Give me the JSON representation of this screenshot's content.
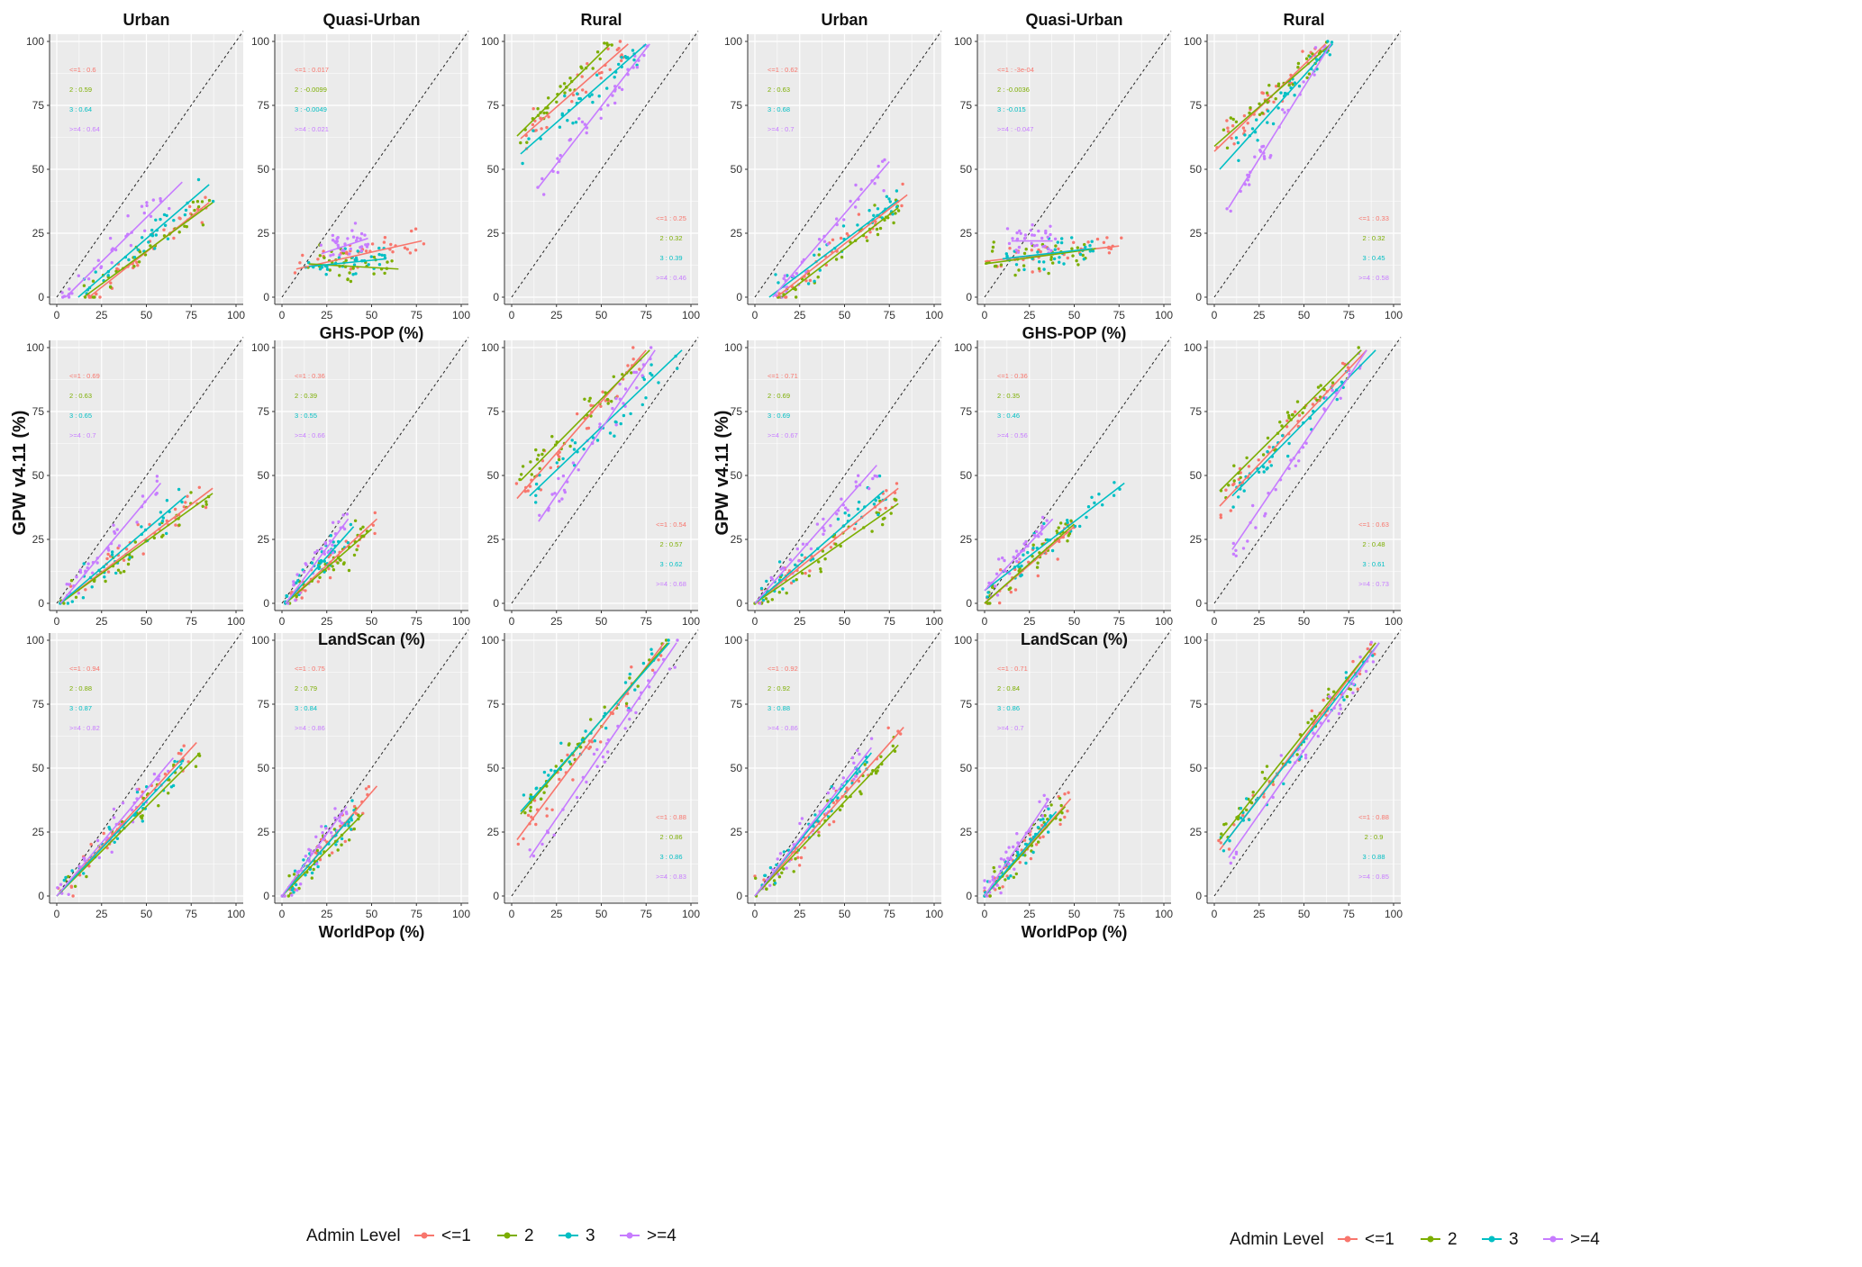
{
  "figure": {
    "colors": {
      "le1": "#F8766D",
      "l2": "#7CAE00",
      "l3": "#00BFC4",
      "ge4": "#C77CFF",
      "panel_bg": "#EBEBEB",
      "grid": "#ffffff"
    },
    "column_titles": [
      "Urban",
      "Quasi-Urban",
      "Rural",
      "Urban",
      "Quasi-Urban",
      "Rural"
    ],
    "ylabel": "GPW v4.11 (%)",
    "row_xlabels": [
      "GHS-POP (%)",
      "LandScan (%)",
      "WorldPop (%)"
    ],
    "ticks": [
      "0",
      "25",
      "50",
      "75",
      "100"
    ],
    "legend": {
      "title": "Admin Level",
      "entries": [
        "<=1",
        "2",
        "3",
        ">=4"
      ]
    }
  },
  "chart_data": [
    {
      "type": "scatter",
      "group": "left",
      "row": "GHS-POP",
      "column": "Urban",
      "xlim": [
        0,
        100
      ],
      "ylim": [
        0,
        100
      ],
      "annotation_position": "top-left",
      "r_labels": [
        "<=1 : 0.6",
        "2 : 0.59",
        "3 : 0.64",
        ">=4 : 0.64"
      ],
      "fits": [
        {
          "level": "<=1",
          "x": [
            18,
            85
          ],
          "y": [
            0,
            37
          ]
        },
        {
          "level": "2",
          "x": [
            15,
            87
          ],
          "y": [
            0,
            37
          ]
        },
        {
          "level": "3",
          "x": [
            12,
            85
          ],
          "y": [
            0,
            44
          ]
        },
        {
          "level": ">=4",
          "x": [
            5,
            70
          ],
          "y": [
            0,
            45
          ]
        }
      ]
    },
    {
      "type": "scatter",
      "group": "left",
      "row": "GHS-POP",
      "column": "Quasi-Urban",
      "xlim": [
        0,
        100
      ],
      "ylim": [
        0,
        100
      ],
      "annotation_position": "top-left",
      "r_labels": [
        "<=1 : 0.017",
        "2 : -0.0099",
        "3 : -0.0049",
        ">=4 : 0.021"
      ],
      "fits": [
        {
          "level": "<=1",
          "x": [
            8,
            78
          ],
          "y": [
            11,
            22
          ]
        },
        {
          "level": "2",
          "x": [
            15,
            65
          ],
          "y": [
            13,
            11
          ]
        },
        {
          "level": "3",
          "x": [
            15,
            58
          ],
          "y": [
            12,
            15
          ]
        },
        {
          "level": ">=4",
          "x": [
            22,
            48
          ],
          "y": [
            17,
            23
          ]
        }
      ]
    },
    {
      "type": "scatter",
      "group": "left",
      "row": "GHS-POP",
      "column": "Rural",
      "xlim": [
        0,
        100
      ],
      "ylim": [
        0,
        100
      ],
      "annotation_position": "bottom-right",
      "r_labels": [
        "<=1 : 0.25",
        "2 : 0.32",
        "3 : 0.39",
        ">=4 : 0.46"
      ],
      "fits": [
        {
          "level": "<=1",
          "x": [
            5,
            65
          ],
          "y": [
            62,
            99
          ]
        },
        {
          "level": "2",
          "x": [
            3,
            55
          ],
          "y": [
            63,
            99
          ]
        },
        {
          "level": "3",
          "x": [
            5,
            75
          ],
          "y": [
            56,
            99
          ]
        },
        {
          "level": ">=4",
          "x": [
            15,
            77
          ],
          "y": [
            43,
            99
          ]
        }
      ]
    },
    {
      "type": "scatter",
      "group": "right",
      "row": "GHS-POP",
      "column": "Urban",
      "xlim": [
        0,
        100
      ],
      "ylim": [
        0,
        100
      ],
      "annotation_position": "top-left",
      "r_labels": [
        "<=1 : 0.62",
        "2 : 0.63",
        "3 : 0.68",
        ">=4 : 0.7"
      ],
      "fits": [
        {
          "level": "<=1",
          "x": [
            12,
            85
          ],
          "y": [
            0,
            40
          ]
        },
        {
          "level": "2",
          "x": [
            15,
            80
          ],
          "y": [
            0,
            35
          ]
        },
        {
          "level": "3",
          "x": [
            8,
            80
          ],
          "y": [
            0,
            38
          ]
        },
        {
          "level": ">=4",
          "x": [
            10,
            75
          ],
          "y": [
            0,
            53
          ]
        }
      ]
    },
    {
      "type": "scatter",
      "group": "right",
      "row": "GHS-POP",
      "column": "Quasi-Urban",
      "xlim": [
        0,
        100
      ],
      "ylim": [
        0,
        100
      ],
      "annotation_position": "top-left",
      "r_labels": [
        "<=1 : -3e-04",
        "2 : -0.0036",
        "3 : -0.015",
        ">=4 : -0.047"
      ],
      "fits": [
        {
          "level": "<=1",
          "x": [
            0,
            75
          ],
          "y": [
            14,
            20
          ]
        },
        {
          "level": "2",
          "x": [
            0,
            62
          ],
          "y": [
            13,
            19
          ]
        },
        {
          "level": "3",
          "x": [
            10,
            60
          ],
          "y": [
            15,
            19
          ]
        },
        {
          "level": ">=4",
          "x": [
            15,
            38
          ],
          "y": [
            22,
            22
          ]
        }
      ]
    },
    {
      "type": "scatter",
      "group": "right",
      "row": "GHS-POP",
      "column": "Rural",
      "xlim": [
        0,
        100
      ],
      "ylim": [
        0,
        100
      ],
      "annotation_position": "bottom-right",
      "r_labels": [
        "<=1 : 0.33",
        "2 : 0.32",
        "3 : 0.45",
        ">=4 : 0.58"
      ],
      "fits": [
        {
          "level": "<=1",
          "x": [
            0,
            62
          ],
          "y": [
            57,
            99
          ]
        },
        {
          "level": "2",
          "x": [
            0,
            65
          ],
          "y": [
            59,
            99
          ]
        },
        {
          "level": "3",
          "x": [
            3,
            66
          ],
          "y": [
            50,
            99
          ]
        },
        {
          "level": ">=4",
          "x": [
            8,
            65
          ],
          "y": [
            35,
            99
          ]
        }
      ]
    },
    {
      "type": "scatter",
      "group": "left",
      "row": "LandScan",
      "column": "Urban",
      "xlim": [
        0,
        100
      ],
      "ylim": [
        0,
        100
      ],
      "annotation_position": "top-left",
      "r_labels": [
        "<=1 : 0.69",
        "2 : 0.63",
        "3 : 0.65",
        ">=4 : 0.7"
      ],
      "fits": [
        {
          "level": "<=1",
          "x": [
            2,
            87
          ],
          "y": [
            0,
            45
          ]
        },
        {
          "level": "2",
          "x": [
            2,
            87
          ],
          "y": [
            0,
            43
          ]
        },
        {
          "level": "3",
          "x": [
            2,
            72
          ],
          "y": [
            0,
            42
          ]
        },
        {
          "level": ">=4",
          "x": [
            2,
            58
          ],
          "y": [
            0,
            47
          ]
        }
      ]
    },
    {
      "type": "scatter",
      "group": "left",
      "row": "LandScan",
      "column": "Quasi-Urban",
      "xlim": [
        0,
        100
      ],
      "ylim": [
        0,
        100
      ],
      "annotation_position": "top-left",
      "r_labels": [
        "<=1 : 0.36",
        "2 : 0.39",
        "3 : 0.55",
        ">=4 : 0.66"
      ],
      "fits": [
        {
          "level": "<=1",
          "x": [
            2,
            53
          ],
          "y": [
            0,
            33
          ]
        },
        {
          "level": "2",
          "x": [
            2,
            50
          ],
          "y": [
            0,
            29
          ]
        },
        {
          "level": "3",
          "x": [
            2,
            40
          ],
          "y": [
            0,
            30
          ]
        },
        {
          "level": ">=4",
          "x": [
            2,
            37
          ],
          "y": [
            0,
            33
          ]
        }
      ]
    },
    {
      "type": "scatter",
      "group": "left",
      "row": "LandScan",
      "column": "Rural",
      "xlim": [
        0,
        100
      ],
      "ylim": [
        0,
        100
      ],
      "annotation_position": "bottom-right",
      "r_labels": [
        "<=1 : 0.54",
        "2 : 0.57",
        "3 : 0.62",
        ">=4 : 0.68"
      ],
      "fits": [
        {
          "level": "<=1",
          "x": [
            3,
            75
          ],
          "y": [
            41,
            99
          ]
        },
        {
          "level": "2",
          "x": [
            5,
            77
          ],
          "y": [
            48,
            99
          ]
        },
        {
          "level": "3",
          "x": [
            10,
            95
          ],
          "y": [
            42,
            99
          ]
        },
        {
          "level": ">=4",
          "x": [
            15,
            80
          ],
          "y": [
            32,
            99
          ]
        }
      ]
    },
    {
      "type": "scatter",
      "group": "right",
      "row": "LandScan",
      "column": "Urban",
      "xlim": [
        0,
        100
      ],
      "ylim": [
        0,
        100
      ],
      "annotation_position": "top-left",
      "r_labels": [
        "<=1 : 0.71",
        "2 : 0.69",
        "3 : 0.69",
        ">=4 : 0.67"
      ],
      "fits": [
        {
          "level": "<=1",
          "x": [
            0,
            80
          ],
          "y": [
            0,
            45
          ]
        },
        {
          "level": "2",
          "x": [
            0,
            80
          ],
          "y": [
            0,
            39
          ]
        },
        {
          "level": "3",
          "x": [
            0,
            72
          ],
          "y": [
            0,
            44
          ]
        },
        {
          "level": ">=4",
          "x": [
            0,
            68
          ],
          "y": [
            0,
            54
          ]
        }
      ]
    },
    {
      "type": "scatter",
      "group": "right",
      "row": "LandScan",
      "column": "Quasi-Urban",
      "xlim": [
        0,
        100
      ],
      "ylim": [
        0,
        100
      ],
      "annotation_position": "top-left",
      "r_labels": [
        "<=1 : 0.36",
        "2 : 0.35",
        "3 : 0.46",
        ">=4 : 0.56"
      ],
      "fits": [
        {
          "level": "<=1",
          "x": [
            0,
            50
          ],
          "y": [
            0,
            30
          ]
        },
        {
          "level": "2",
          "x": [
            0,
            50
          ],
          "y": [
            0,
            31
          ]
        },
        {
          "level": "3",
          "x": [
            0,
            78
          ],
          "y": [
            5,
            47
          ]
        },
        {
          "level": ">=4",
          "x": [
            0,
            38
          ],
          "y": [
            5,
            33
          ]
        }
      ]
    },
    {
      "type": "scatter",
      "group": "right",
      "row": "LandScan",
      "column": "Rural",
      "xlim": [
        0,
        100
      ],
      "ylim": [
        0,
        100
      ],
      "annotation_position": "bottom-right",
      "r_labels": [
        "<=1 : 0.63",
        "2 : 0.48",
        "3 : 0.61",
        ">=4 : 0.73"
      ],
      "fits": [
        {
          "level": "<=1",
          "x": [
            3,
            85
          ],
          "y": [
            38,
            99
          ]
        },
        {
          "level": "2",
          "x": [
            3,
            82
          ],
          "y": [
            44,
            99
          ]
        },
        {
          "level": "3",
          "x": [
            10,
            90
          ],
          "y": [
            42,
            99
          ]
        },
        {
          "level": ">=4",
          "x": [
            10,
            85
          ],
          "y": [
            21,
            99
          ]
        }
      ]
    },
    {
      "type": "scatter",
      "group": "left",
      "row": "WorldPop",
      "column": "Urban",
      "xlim": [
        0,
        100
      ],
      "ylim": [
        0,
        100
      ],
      "annotation_position": "top-left",
      "r_labels": [
        "<=1 : 0.94",
        "2 : 0.88",
        "3 : 0.87",
        ">=4 : 0.82"
      ],
      "fits": [
        {
          "level": "<=1",
          "x": [
            0,
            78
          ],
          "y": [
            0,
            60
          ]
        },
        {
          "level": "2",
          "x": [
            0,
            80
          ],
          "y": [
            0,
            56
          ]
        },
        {
          "level": "3",
          "x": [
            0,
            70
          ],
          "y": [
            0,
            52
          ]
        },
        {
          "level": ">=4",
          "x": [
            0,
            65
          ],
          "y": [
            0,
            54
          ]
        }
      ]
    },
    {
      "type": "scatter",
      "group": "left",
      "row": "WorldPop",
      "column": "Quasi-Urban",
      "xlim": [
        0,
        100
      ],
      "ylim": [
        0,
        100
      ],
      "annotation_position": "top-left",
      "r_labels": [
        "<=1 : 0.75",
        "2 : 0.79",
        "3 : 0.84",
        ">=4 : 0.86"
      ],
      "fits": [
        {
          "level": "<=1",
          "x": [
            0,
            53
          ],
          "y": [
            0,
            43
          ]
        },
        {
          "level": "2",
          "x": [
            0,
            45
          ],
          "y": [
            0,
            32
          ]
        },
        {
          "level": "3",
          "x": [
            0,
            40
          ],
          "y": [
            0,
            32
          ]
        },
        {
          "level": ">=4",
          "x": [
            0,
            36
          ],
          "y": [
            0,
            35
          ]
        }
      ]
    },
    {
      "type": "scatter",
      "group": "left",
      "row": "WorldPop",
      "column": "Rural",
      "xlim": [
        0,
        100
      ],
      "ylim": [
        0,
        100
      ],
      "annotation_position": "bottom-right",
      "r_labels": [
        "<=1 : 0.88",
        "2 : 0.86",
        "3 : 0.86",
        ">=4 : 0.83"
      ],
      "fits": [
        {
          "level": "<=1",
          "x": [
            3,
            85
          ],
          "y": [
            22,
            99
          ]
        },
        {
          "level": "2",
          "x": [
            5,
            87
          ],
          "y": [
            32,
            99
          ]
        },
        {
          "level": "3",
          "x": [
            5,
            88
          ],
          "y": [
            33,
            99
          ]
        },
        {
          "level": ">=4",
          "x": [
            10,
            92
          ],
          "y": [
            15,
            99
          ]
        }
      ]
    },
    {
      "type": "scatter",
      "group": "right",
      "row": "WorldPop",
      "column": "Urban",
      "xlim": [
        0,
        100
      ],
      "ylim": [
        0,
        100
      ],
      "annotation_position": "top-left",
      "r_labels": [
        "<=1 : 0.92",
        "2 : 0.92",
        "3 : 0.88",
        ">=4 : 0.86"
      ],
      "fits": [
        {
          "level": "<=1",
          "x": [
            0,
            83
          ],
          "y": [
            0,
            66
          ]
        },
        {
          "level": "2",
          "x": [
            0,
            80
          ],
          "y": [
            0,
            59
          ]
        },
        {
          "level": "3",
          "x": [
            0,
            65
          ],
          "y": [
            0,
            56
          ]
        },
        {
          "level": ">=4",
          "x": [
            0,
            65
          ],
          "y": [
            0,
            58
          ]
        }
      ]
    },
    {
      "type": "scatter",
      "group": "right",
      "row": "WorldPop",
      "column": "Quasi-Urban",
      "xlim": [
        0,
        100
      ],
      "ylim": [
        0,
        100
      ],
      "annotation_position": "top-left",
      "r_labels": [
        "<=1 : 0.71",
        "2 : 0.84",
        "3 : 0.86",
        ">=4 : 0.7"
      ],
      "fits": [
        {
          "level": "<=1",
          "x": [
            0,
            48
          ],
          "y": [
            0,
            38
          ]
        },
        {
          "level": "2",
          "x": [
            0,
            45
          ],
          "y": [
            0,
            35
          ]
        },
        {
          "level": "3",
          "x": [
            0,
            40
          ],
          "y": [
            0,
            33
          ]
        },
        {
          "level": ">=4",
          "x": [
            0,
            36
          ],
          "y": [
            0,
            38
          ]
        }
      ]
    },
    {
      "type": "scatter",
      "group": "right",
      "row": "WorldPop",
      "column": "Rural",
      "xlim": [
        0,
        100
      ],
      "ylim": [
        0,
        100
      ],
      "annotation_position": "bottom-right",
      "r_labels": [
        "<=1 : 0.88",
        "2 : 0.9",
        "3 : 0.88",
        ">=4 : 0.85"
      ],
      "fits": [
        {
          "level": "<=1",
          "x": [
            3,
            90
          ],
          "y": [
            18,
            99
          ]
        },
        {
          "level": "2",
          "x": [
            3,
            90
          ],
          "y": [
            22,
            99
          ]
        },
        {
          "level": "3",
          "x": [
            5,
            92
          ],
          "y": [
            20,
            99
          ]
        },
        {
          "level": ">=4",
          "x": [
            8,
            92
          ],
          "y": [
            15,
            99
          ]
        }
      ]
    }
  ]
}
